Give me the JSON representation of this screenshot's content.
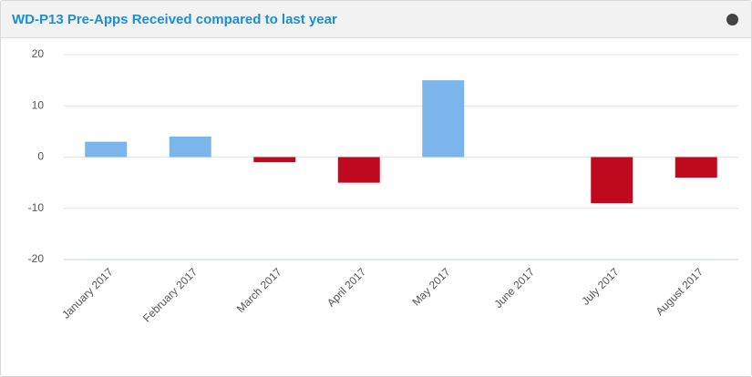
{
  "chart_data": {
    "type": "bar",
    "title": "WD-P13 Pre-Apps Received compared to last year",
    "categories": [
      "January 2017",
      "February 2017",
      "March 2017",
      "April 2017",
      "May 2017",
      "June 2017",
      "July 2017",
      "August 2017"
    ],
    "values": [
      3,
      4,
      -1,
      -5,
      15,
      0,
      -9,
      -4
    ],
    "positive_color": "#7cb5ec",
    "negative_color": "#c0091e",
    "ylim": [
      -20,
      20
    ],
    "yticks": [
      -20,
      -10,
      0,
      10,
      20
    ],
    "grid": true
  }
}
